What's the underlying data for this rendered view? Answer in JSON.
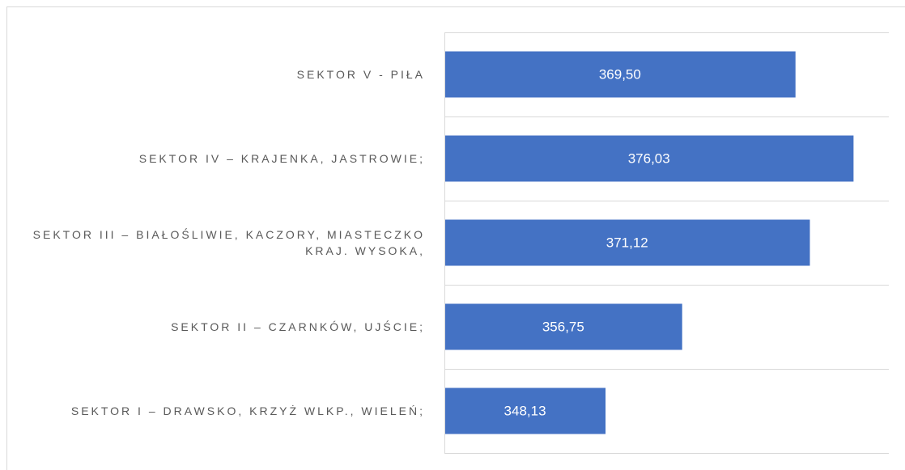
{
  "chart_data": {
    "type": "bar",
    "orientation": "horizontal",
    "categories": [
      "SEKTOR V  - PIŁA",
      "SEKTOR IV – KRAJENKA, JASTROWIE;",
      "SEKTOR III – BIAŁOŚLIWIE, KACZORY, MIASTECZKO KRAJ. WYSOKA,",
      "SEKTOR II – CZARNKÓW, UJŚCIE;",
      "SEKTOR I – DRAWSKO, KRZYŻ WLKP., WIELEŃ;"
    ],
    "values": [
      369.5,
      376.03,
      371.12,
      356.75,
      348.13
    ],
    "value_labels": [
      "369,50",
      "376,03",
      "371,12",
      "356,75",
      "348,13"
    ],
    "color": "#4472c4",
    "xlim": [
      330,
      380
    ]
  }
}
